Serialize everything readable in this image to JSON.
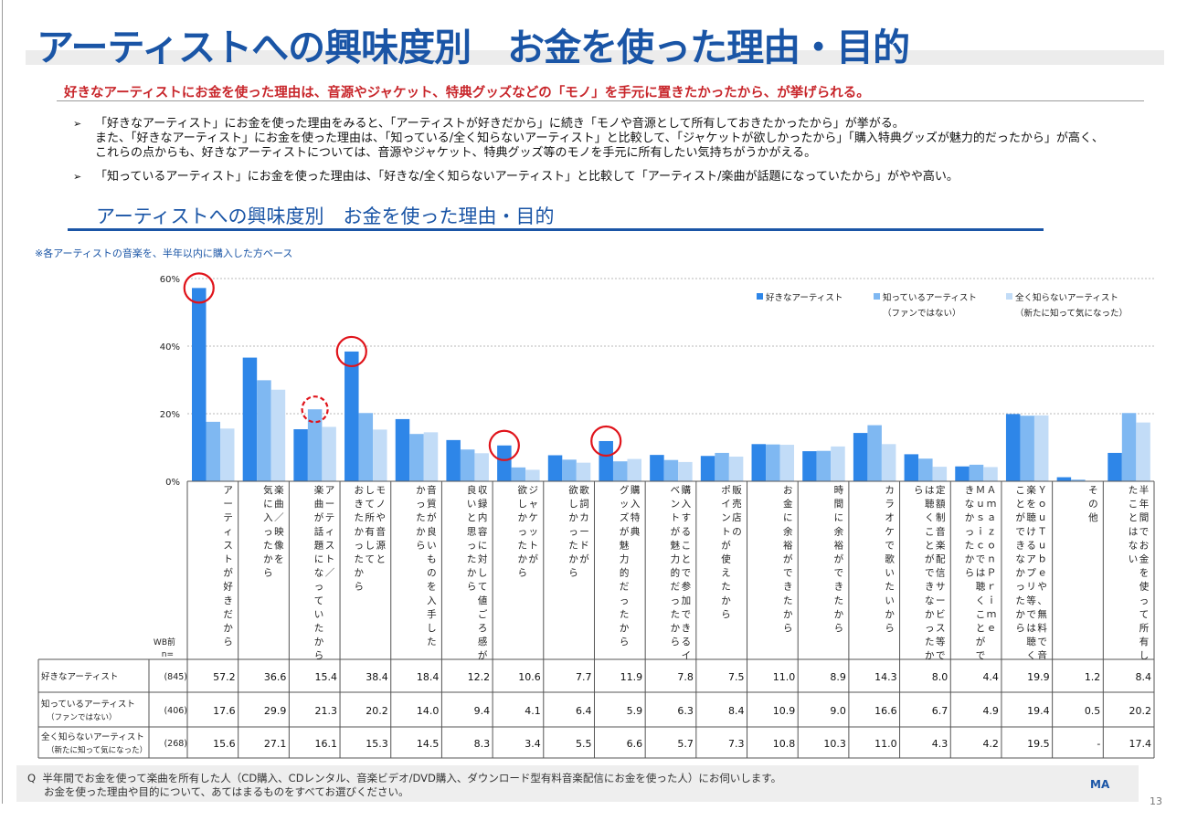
{
  "header": {
    "title": "アーティストへの興味度別　お金を使った理由・目的",
    "subtitle": "好きなアーティストにお金を使った理由は、音源やジャケット、特典グッズなどの「モノ」を手元に置きたかったから、が挙げられる。"
  },
  "bullets": [
    {
      "lines": [
        "「好きなアーティスト」にお金を使った理由をみると、「アーティストが好きだから」に続き「モノや音源として所有しておきたかったから」が挙がる。",
        "また、「好きなアーティスト」にお金を使った理由は、「知っている/全く知らないアーティスト」と比較して、「ジャケットが欲しかったから」「購入特典グッズが魅力的だったから」が高く、",
        "これらの点からも、好きなアーティストについては、音源やジャケット、特典グッズ等のモノを手元に所有したい気持ちがうかがえる。"
      ]
    },
    {
      "lines": [
        "「知っているアーティスト」にお金を使った理由は、「好きな/全く知らないアーティスト」と比較して「アーティスト/楽曲が話題になっていたから」がやや高い。"
      ]
    }
  ],
  "chart_heading": "アーティストへの興味度別　お金を使った理由・目的",
  "base_note": "※各アーティストの音楽を、半年以内に購入した方ベース",
  "chart_data": {
    "type": "bar",
    "ylim": [
      0,
      60
    ],
    "y_ticks": [
      "0%",
      "20%",
      "40%",
      "60%"
    ],
    "grid": true,
    "legend_position": "top-right",
    "categories": [
      "アーティストが好きだから",
      "楽曲／映像を気に入ったから",
      "アーティスト／楽曲が話題になっていたから",
      "モノや音源として所有しておきたかったから",
      "音質が良いものを入手したかったから",
      "収録内容に対して値ごろ感が良いと思ったから",
      "ジャケットが欲しかったから",
      "歌詞カードが欲しかったから",
      "購入特典グッズが魅力的だったから",
      "購入することで参加できるイベントが魅力的だったから",
      "販売店のポイントが使えたから",
      "お金に余裕ができたから",
      "時間に余裕ができたから",
      "カラオケで歌いたいから",
      "定額制音楽配信サービス等では聴くことができなかったから",
      "ＡｍａｚｏｎＰｒｉｍｅＭｕｓｉｃでは聴くことができなかったから",
      "ＹｏｕＴｕｂｅや、無料で音楽を聴けるアプリ等では聴くことができなかったから",
      "その他",
      "半年間でお金を使って所有したことはない"
    ],
    "category_columns": [
      [
        "アーティストが好きだから"
      ],
      [
        "楽曲／映像を",
        "気に入ったから"
      ],
      [
        "アーティスト／",
        "楽曲が話題になっていたから"
      ],
      [
        "モノや音源と",
        "して所有して",
        "おきたかったから"
      ],
      [
        "音質が良いものを入手した",
        "かったから"
      ],
      [
        "収録内容に対して値ごろ感が",
        "良いと思ったから"
      ],
      [
        "ジャケットが",
        "欲しかったから"
      ],
      [
        "歌詞カードが",
        "欲しかったから"
      ],
      [
        "購入特典",
        "グッズが魅力的だったから"
      ],
      [
        "購入することで参加できるイ",
        "ベントが魅力的だったから"
      ],
      [
        "販売店の",
        "ポイントが使えたから"
      ],
      [
        "お金に余裕ができたから"
      ],
      [
        "時間に余裕ができたから"
      ],
      [
        "カラオケで歌いたいから"
      ],
      [
        "定額制音楽配信サービス等で",
        "は聴くことができなかったか",
        "ら"
      ],
      [
        "ＡｍａｚｏｎＰｒｉｍｅ",
        "Ｍｕｓｉｃでは聴くことがで",
        "きなかったから"
      ],
      [
        "ＹｏｕＴｕｂｅや、無料で音",
        "楽を聴けるアプリ等では聴く",
        "ことができなかったから"
      ],
      [
        "その他"
      ],
      [
        "半年間でお金を使って所有し",
        "たことはない"
      ]
    ],
    "series": [
      {
        "name": "好きなアーティスト",
        "name_sub": "",
        "n": "(845)",
        "values": [
          57.2,
          36.6,
          15.4,
          38.4,
          18.4,
          12.2,
          10.6,
          7.7,
          11.9,
          7.8,
          7.5,
          11.0,
          8.9,
          14.3,
          8.0,
          4.4,
          19.9,
          1.2,
          8.4
        ],
        "labels": [
          "57.2",
          "36.6",
          "15.4",
          "38.4",
          "18.4",
          "12.2",
          "10.6",
          "7.7",
          "11.9",
          "7.8",
          "7.5",
          "11.0",
          "8.9",
          "14.3",
          "8.0",
          "4.4",
          "19.9",
          "1.2",
          "8.4"
        ]
      },
      {
        "name": "知っているアーティスト",
        "name_sub": "（ファンではない）",
        "n": "(406)",
        "values": [
          17.6,
          29.9,
          21.3,
          20.2,
          14.0,
          9.4,
          4.1,
          6.4,
          5.9,
          6.3,
          8.4,
          10.9,
          9.0,
          16.6,
          6.7,
          4.9,
          19.4,
          0.5,
          20.2
        ],
        "labels": [
          "17.6",
          "29.9",
          "21.3",
          "20.2",
          "14.0",
          "9.4",
          "4.1",
          "6.4",
          "5.9",
          "6.3",
          "8.4",
          "10.9",
          "9.0",
          "16.6",
          "6.7",
          "4.9",
          "19.4",
          "0.5",
          "20.2"
        ]
      },
      {
        "name": "全く知らないアーティスト",
        "name_sub": "（新たに知って気になった）",
        "n": "(268)",
        "values": [
          15.6,
          27.1,
          16.1,
          15.3,
          14.5,
          8.3,
          3.4,
          5.5,
          6.6,
          5.7,
          7.3,
          10.8,
          10.3,
          11.0,
          4.3,
          4.2,
          19.5,
          0,
          17.4
        ],
        "labels": [
          "15.6",
          "27.1",
          "16.1",
          "15.3",
          "14.5",
          "8.3",
          "3.4",
          "5.5",
          "6.6",
          "5.7",
          "7.3",
          "10.8",
          "10.3",
          "11.0",
          "4.3",
          "4.2",
          "19.5",
          "-",
          "17.4"
        ]
      }
    ],
    "legend": [
      {
        "label": "好きなアーティスト",
        "sub": ""
      },
      {
        "label": "知っているアーティスト",
        "sub": "（ファンではない）"
      },
      {
        "label": "全く知らないアーティスト",
        "sub": "（新たに知って気になった）"
      }
    ],
    "n_header": [
      "WB前",
      "n="
    ],
    "highlights": [
      {
        "category_index": 0,
        "series_index": 0,
        "style": "solid"
      },
      {
        "category_index": 2,
        "series_index": 1,
        "style": "dashed"
      },
      {
        "category_index": 3,
        "series_index": 0,
        "style": "solid"
      },
      {
        "category_index": 6,
        "series_index": 0,
        "style": "solid"
      },
      {
        "category_index": 8,
        "series_index": 0,
        "style": "solid"
      }
    ],
    "colors": [
      "#2e86e8",
      "#7fb8f2",
      "#c2dcf7"
    ],
    "highlight_color": "#e0141b"
  },
  "footer": {
    "question_mark": "Q",
    "question_lines": [
      "半年間でお金を使って楽曲を所有した人（CD購入、CDレンタル、音楽ビデオ/DVD購入、ダウンロード型有料音楽配信にお金を使った人）にお伺いします。",
      "お金を使った理由や目的について、あてはまるものをすべてお選びください。"
    ],
    "logo": "MA",
    "page_number": "13"
  }
}
